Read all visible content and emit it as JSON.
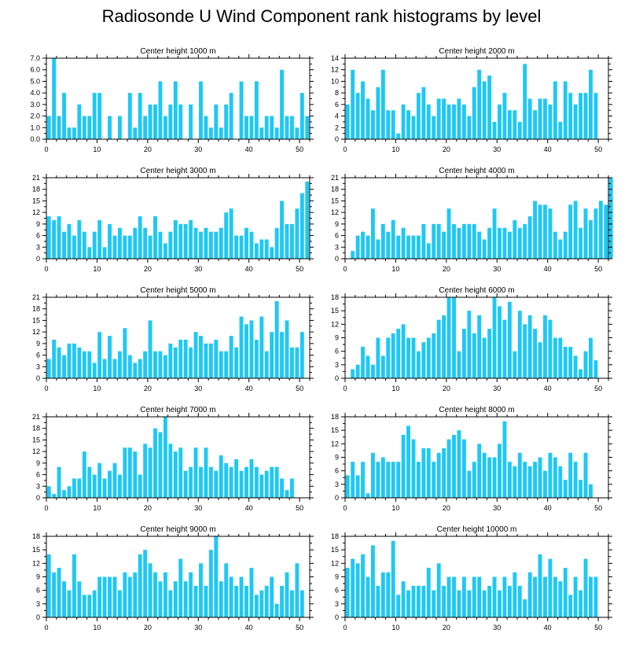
{
  "title": "Radiosonde U Wind Component rank histograms by level",
  "bar_color": "#1ec8f5",
  "chart_data": [
    {
      "type": "bar",
      "title": "Center height 1000 m",
      "x_range": [
        0,
        52
      ],
      "x_ticks": [
        0,
        10,
        20,
        30,
        40,
        50
      ],
      "ylim": [
        0,
        7
      ],
      "y_ticks": [
        0,
        1,
        2,
        3,
        4,
        5,
        6,
        7
      ],
      "y_tick_labels": [
        "0.0",
        "1.0",
        "2.0",
        "3.0",
        "4.0",
        "5.0",
        "6.0",
        "7.0"
      ],
      "values": [
        2,
        7,
        2,
        4,
        1,
        1,
        3,
        2,
        2,
        4,
        4,
        0,
        2,
        0,
        2,
        0,
        4,
        1,
        4,
        2,
        3,
        3,
        5,
        2,
        3,
        5,
        3,
        0,
        3,
        0,
        5,
        2,
        1,
        3,
        1,
        3,
        4,
        0,
        5,
        2,
        2,
        5,
        1,
        2,
        2,
        1,
        6,
        2,
        2,
        1,
        4,
        2
      ]
    },
    {
      "type": "bar",
      "title": "Center height 2000 m",
      "x_range": [
        0,
        52
      ],
      "x_ticks": [
        0,
        10,
        20,
        30,
        40,
        50
      ],
      "ylim": [
        0,
        14
      ],
      "y_ticks": [
        0,
        2,
        4,
        6,
        8,
        10,
        12,
        14
      ],
      "y_tick_labels": [
        "0",
        "2",
        "4",
        "6",
        "8",
        "10",
        "12",
        "14"
      ],
      "values": [
        6,
        12,
        8,
        10,
        7,
        5,
        9,
        12,
        5,
        5,
        1,
        6,
        5,
        4,
        8,
        9,
        6,
        4,
        7,
        7,
        6,
        6,
        7,
        6,
        4,
        9,
        12,
        10,
        11,
        3,
        6,
        8,
        5,
        5,
        3,
        13,
        7,
        5,
        7,
        7,
        6,
        10,
        3,
        10,
        8,
        6,
        8,
        8,
        12,
        8
      ]
    },
    {
      "type": "bar",
      "title": "Center height 3000 m",
      "x_range": [
        0,
        52
      ],
      "x_ticks": [
        0,
        10,
        20,
        30,
        40,
        50
      ],
      "ylim": [
        0,
        21
      ],
      "y_ticks": [
        0,
        3,
        6,
        9,
        12,
        15,
        18,
        21
      ],
      "y_tick_labels": [
        "0",
        "3",
        "6",
        "9",
        "12",
        "15",
        "18",
        "21"
      ],
      "values": [
        11,
        10,
        11,
        7,
        9,
        6,
        10,
        7,
        3,
        7,
        10,
        3,
        9,
        6,
        8,
        6,
        6,
        8,
        11,
        8,
        6,
        11,
        7,
        4,
        7,
        10,
        9,
        9,
        10,
        8,
        7,
        8,
        7,
        7,
        8,
        12,
        13,
        6,
        6,
        8,
        7,
        4,
        5,
        5,
        3,
        8,
        15,
        9,
        9,
        13,
        17,
        20
      ]
    },
    {
      "type": "bar",
      "title": "Center height 4000 m",
      "x_range": [
        0,
        52
      ],
      "x_ticks": [
        0,
        10,
        20,
        30,
        40,
        50
      ],
      "ylim": [
        0,
        21
      ],
      "y_ticks": [
        0,
        3,
        6,
        9,
        12,
        15,
        18,
        21
      ],
      "y_tick_labels": [
        "0",
        "3",
        "6",
        "9",
        "12",
        "15",
        "18",
        "21"
      ],
      "values": [
        0,
        2,
        6,
        7,
        6,
        13,
        5,
        9,
        7,
        10,
        6,
        8,
        6,
        6,
        6,
        9,
        4,
        9,
        9,
        7,
        13,
        9,
        8,
        9,
        9,
        9,
        7,
        5,
        8,
        13,
        8,
        8,
        7,
        10,
        8,
        9,
        11,
        15,
        14,
        14,
        13,
        7,
        5,
        7,
        14,
        15,
        8,
        13,
        10,
        13,
        15,
        14,
        21
      ]
    },
    {
      "type": "bar",
      "title": "Center height 5000 m",
      "x_range": [
        0,
        52
      ],
      "x_ticks": [
        0,
        10,
        20,
        30,
        40,
        50
      ],
      "ylim": [
        0,
        21
      ],
      "y_ticks": [
        0,
        3,
        6,
        9,
        12,
        15,
        18,
        21
      ],
      "y_tick_labels": [
        "0",
        "3",
        "6",
        "9",
        "12",
        "15",
        "18",
        "21"
      ],
      "values": [
        5,
        10,
        8,
        6,
        9,
        9,
        8,
        7,
        7,
        4,
        12,
        5,
        11,
        5,
        7,
        13,
        6,
        4,
        5,
        7,
        15,
        7,
        7,
        6,
        9,
        8,
        10,
        10,
        8,
        12,
        11,
        9,
        9,
        10,
        7,
        7,
        11,
        8,
        16,
        14,
        15,
        10,
        16,
        7,
        12,
        20,
        12,
        15,
        8,
        8,
        12
      ]
    },
    {
      "type": "bar",
      "title": "Center height 6000 m",
      "x_range": [
        0,
        52
      ],
      "x_ticks": [
        0,
        10,
        20,
        30,
        40,
        50
      ],
      "ylim": [
        0,
        18
      ],
      "y_ticks": [
        0,
        3,
        6,
        9,
        12,
        15,
        18
      ],
      "y_tick_labels": [
        "0",
        "3",
        "6",
        "9",
        "12",
        "15",
        "18"
      ],
      "values": [
        0,
        2,
        3,
        7,
        5,
        3,
        9,
        5,
        9,
        10,
        11,
        12,
        9,
        9,
        6,
        8,
        9,
        10,
        13,
        14,
        18,
        18,
        6,
        11,
        15,
        10,
        14,
        9,
        11,
        18,
        16,
        13,
        17,
        6,
        15,
        12,
        14,
        11,
        8,
        14,
        13,
        9,
        9,
        7,
        7,
        5,
        2,
        6,
        9,
        4
      ]
    },
    {
      "type": "bar",
      "title": "Center height 7000 m",
      "x_range": [
        0,
        52
      ],
      "x_ticks": [
        0,
        10,
        20,
        30,
        40,
        50
      ],
      "ylim": [
        0,
        21
      ],
      "y_ticks": [
        0,
        3,
        6,
        9,
        12,
        15,
        18,
        21
      ],
      "y_tick_labels": [
        "0",
        "3",
        "6",
        "9",
        "12",
        "15",
        "18",
        "21"
      ],
      "values": [
        3,
        1,
        8,
        2,
        3,
        5,
        5,
        12,
        8,
        6,
        9,
        5,
        7,
        9,
        6,
        13,
        13,
        12,
        6,
        14,
        13,
        18,
        17,
        21,
        14,
        12,
        13,
        7,
        8,
        13,
        8,
        13,
        8,
        7,
        11,
        9,
        8,
        10,
        7,
        8,
        10,
        8,
        6,
        7,
        8,
        8,
        5,
        2,
        5
      ]
    },
    {
      "type": "bar",
      "title": "Center height 8000 m",
      "x_range": [
        0,
        52
      ],
      "x_ticks": [
        0,
        10,
        20,
        30,
        40,
        50
      ],
      "ylim": [
        0,
        18
      ],
      "y_ticks": [
        0,
        3,
        6,
        9,
        12,
        15,
        18
      ],
      "y_tick_labels": [
        "0",
        "3",
        "6",
        "9",
        "12",
        "15",
        "18"
      ],
      "values": [
        5,
        8,
        5,
        8,
        1,
        10,
        8,
        9,
        8,
        8,
        8,
        14,
        16,
        13,
        8,
        11,
        11,
        8,
        10,
        11,
        13,
        14,
        15,
        13,
        6,
        8,
        12,
        10,
        9,
        9,
        12,
        17,
        8,
        7,
        10,
        8,
        7,
        8,
        9,
        6,
        10,
        9,
        7,
        4,
        10,
        8,
        4,
        10,
        3
      ]
    },
    {
      "type": "bar",
      "title": "Center height 9000 m",
      "x_range": [
        0,
        52
      ],
      "x_ticks": [
        0,
        10,
        20,
        30,
        40,
        50
      ],
      "ylim": [
        0,
        18
      ],
      "y_ticks": [
        0,
        3,
        6,
        9,
        12,
        15,
        18
      ],
      "y_tick_labels": [
        "0",
        "3",
        "6",
        "9",
        "12",
        "15",
        "18"
      ],
      "values": [
        14,
        10,
        11,
        8,
        6,
        14,
        8,
        5,
        5,
        6,
        9,
        9,
        9,
        9,
        6,
        10,
        9,
        10,
        14,
        15,
        12,
        10,
        8,
        10,
        6,
        8,
        13,
        8,
        10,
        7,
        12,
        7,
        15,
        18,
        8,
        12,
        9,
        7,
        9,
        7,
        11,
        5,
        6,
        7,
        9,
        3,
        7,
        10,
        6,
        12,
        6
      ]
    },
    {
      "type": "bar",
      "title": "Center height 10000 m",
      "x_range": [
        0,
        52
      ],
      "x_ticks": [
        0,
        10,
        20,
        30,
        40,
        50
      ],
      "ylim": [
        0,
        18
      ],
      "y_ticks": [
        0,
        3,
        6,
        9,
        12,
        15,
        18
      ],
      "y_tick_labels": [
        "0",
        "3",
        "6",
        "9",
        "12",
        "15",
        "18"
      ],
      "values": [
        11,
        13,
        12,
        14,
        9,
        16,
        7,
        10,
        10,
        17,
        5,
        8,
        6,
        7,
        7,
        7,
        11,
        6,
        12,
        7,
        9,
        9,
        6,
        9,
        6,
        9,
        9,
        6,
        7,
        9,
        6,
        9,
        7,
        10,
        7,
        4,
        10,
        9,
        14,
        9,
        13,
        9,
        8,
        11,
        5,
        9,
        6,
        13,
        9,
        9
      ]
    }
  ]
}
